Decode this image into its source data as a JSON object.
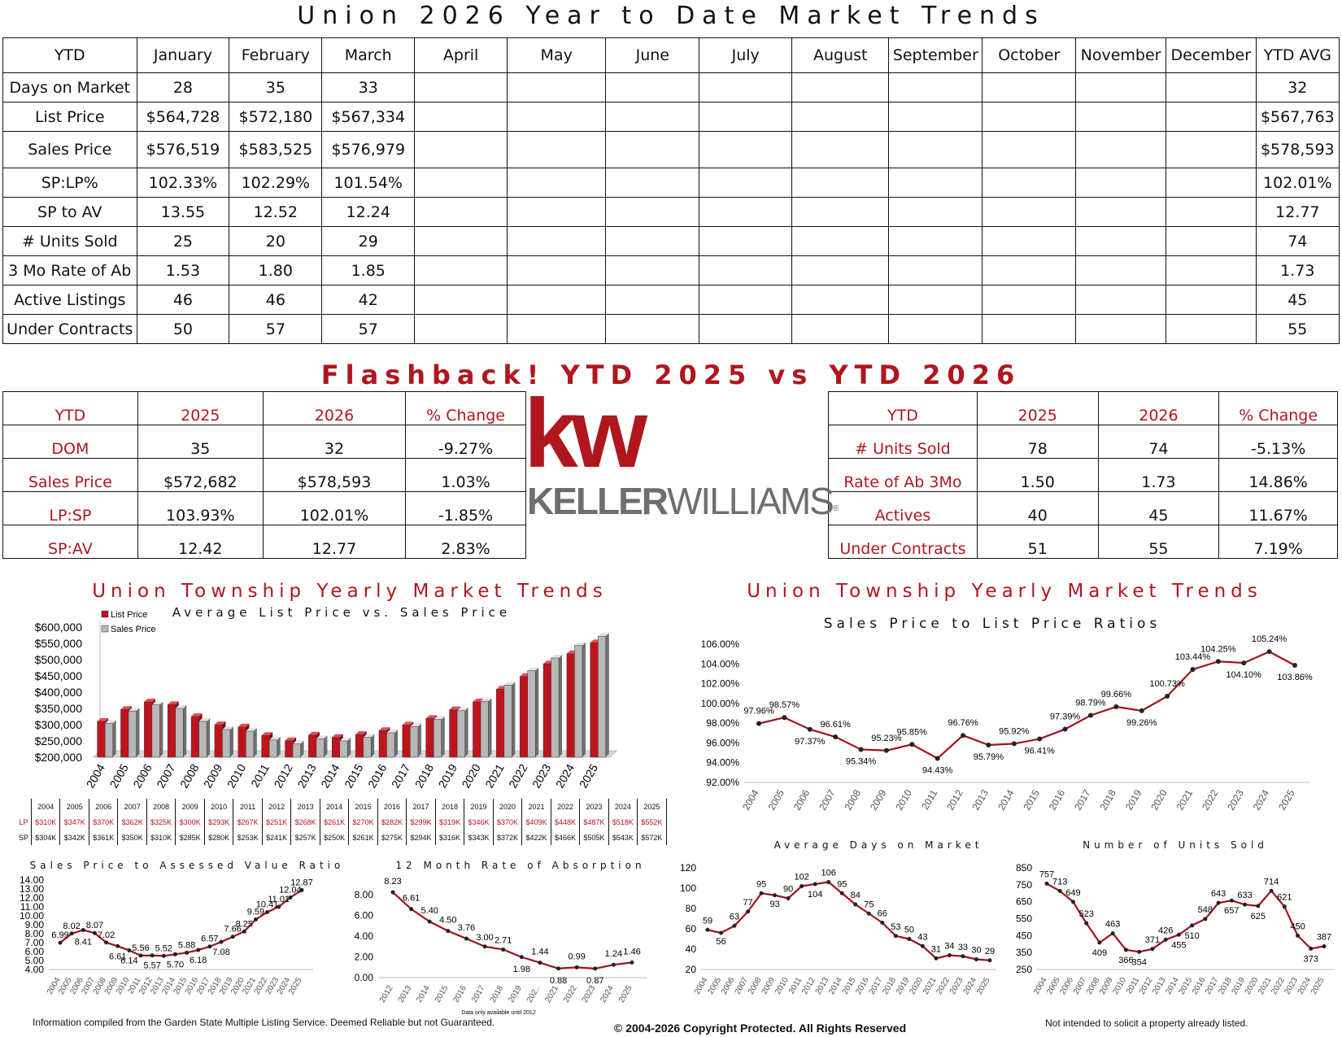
{
  "title": "Union 2026 Year to Date Market Trends",
  "ytd_table": {
    "headers": [
      "YTD",
      "January",
      "February",
      "March",
      "April",
      "May",
      "June",
      "July",
      "August",
      "September",
      "October",
      "November",
      "December",
      "YTD AVG"
    ],
    "rows": [
      {
        "label": "Days on Market",
        "jan": "28",
        "feb": "35",
        "mar": "33",
        "avg": "32"
      },
      {
        "label": "List Price",
        "jan": "$564,728",
        "feb": "$572,180",
        "mar": "$567,334",
        "avg": "$567,763"
      },
      {
        "label": "Sales Price",
        "jan": "$576,519",
        "feb": "$583,525",
        "mar": "$576,979",
        "avg": "$578,593"
      },
      {
        "label": "SP:LP%",
        "jan": "102.33%",
        "feb": "102.29%",
        "mar": "101.54%",
        "avg": "102.01%"
      },
      {
        "label": "SP to AV",
        "jan": "13.55",
        "feb": "12.52",
        "mar": "12.24",
        "avg": "12.77"
      },
      {
        "label": "# Units Sold",
        "jan": "25",
        "feb": "20",
        "mar": "29",
        "avg": "74"
      },
      {
        "label": "3 Mo Rate of Ab",
        "jan": "1.53",
        "feb": "1.80",
        "mar": "1.85",
        "avg": "1.73"
      },
      {
        "label": "Active Listings",
        "jan": "46",
        "feb": "46",
        "mar": "42",
        "avg": "45"
      },
      {
        "label": "Under Contracts",
        "jan": "50",
        "feb": "57",
        "mar": "57",
        "avg": "55"
      }
    ]
  },
  "flashback": {
    "title": "Flashback!  YTD 2025 vs YTD 2026",
    "headers": [
      "YTD",
      "2025",
      "2026",
      "% Change"
    ],
    "left_rows": [
      [
        "DOM",
        "35",
        "32",
        "-9.27%"
      ],
      [
        "Sales Price",
        "$572,682",
        "$578,593",
        "1.03%"
      ],
      [
        "LP:SP",
        "103.93%",
        "102.01%",
        "-1.85%"
      ],
      [
        "SP:AV",
        "12.42",
        "12.77",
        "2.83%"
      ]
    ],
    "right_rows": [
      [
        "# Units Sold",
        "78",
        "74",
        "-5.13%"
      ],
      [
        "Rate of Ab 3Mo",
        "1.50",
        "1.73",
        "14.86%"
      ],
      [
        "Actives",
        "40",
        "45",
        "11.67%"
      ],
      [
        "Under Contracts",
        "51",
        "55",
        "7.19%"
      ]
    ]
  },
  "logo": {
    "kw": "kw",
    "name_bold": "KELLER",
    "name_light": "WILLIAMS",
    "mark": "®",
    "color": "#b0161e",
    "gray": "#6d6e70"
  },
  "section_title": "Union Township Yearly Market Trends",
  "chart_data": [
    {
      "type": "bar",
      "title": "Average List Price vs. Sales Price",
      "categories": [
        "2004",
        "2005",
        "2006",
        "2007",
        "2008",
        "2009",
        "2010",
        "2011",
        "2012",
        "2013",
        "2014",
        "2015",
        "2016",
        "2017",
        "2018",
        "2019",
        "2020",
        "2021",
        "2022",
        "2023",
        "2024",
        "2025"
      ],
      "series": [
        {
          "name": "List Price",
          "color": "#c0141c",
          "values": [
            310000,
            347000,
            370000,
            362000,
            325000,
            300000,
            293000,
            267000,
            251000,
            268000,
            261000,
            270000,
            282000,
            299000,
            319000,
            346000,
            370000,
            409000,
            448000,
            487000,
            518000,
            552000
          ]
        },
        {
          "name": "Sales Price",
          "color": "#b8b8b8",
          "values": [
            304000,
            342000,
            361000,
            350000,
            310000,
            285000,
            280000,
            253000,
            241000,
            257000,
            250000,
            261000,
            275000,
            294000,
            316000,
            343000,
            372000,
            422000,
            466000,
            505000,
            543000,
            572000
          ]
        }
      ],
      "ylim": [
        200000,
        600000
      ],
      "yticks": [
        "$200,000",
        "$250,000",
        "$300,000",
        "$350,000",
        "$400,000",
        "$450,000",
        "$500,000",
        "$550,000",
        "$600,000"
      ],
      "legend": "top-left",
      "table": {
        "LP": [
          "$310K",
          "$347K",
          "$370K",
          "$362K",
          "$325K",
          "$300K",
          "$293K",
          "$267K",
          "$251K",
          "$268K",
          "$261K",
          "$270K",
          "$282K",
          "$299K",
          "$319K",
          "$346K",
          "$370K",
          "$409K",
          "$448K",
          "$487K",
          "$518K",
          "$552K"
        ],
        "SP": [
          "$304K",
          "$342K",
          "$361K",
          "$350K",
          "$310K",
          "$285K",
          "$280K",
          "$253K",
          "$241K",
          "$257K",
          "$250K",
          "$261K",
          "$275K",
          "$294K",
          "$316K",
          "$343K",
          "$372K",
          "$422K",
          "$466K",
          "$505K",
          "$543K",
          "$572K"
        ]
      }
    },
    {
      "type": "line",
      "title": "Sales Price to List Price Ratios",
      "x": [
        "2004",
        "2005",
        "2006",
        "2007",
        "2008",
        "2009",
        "2010",
        "2011",
        "2012",
        "2013",
        "2014",
        "2015",
        "2016",
        "2017",
        "2018",
        "2019",
        "2020",
        "2021",
        "2022",
        "2023",
        "2024",
        "2025"
      ],
      "values": [
        97.96,
        98.57,
        97.37,
        96.61,
        95.34,
        95.23,
        95.85,
        94.43,
        96.76,
        95.79,
        95.92,
        96.41,
        97.39,
        98.79,
        99.66,
        99.26,
        100.73,
        103.44,
        104.25,
        104.1,
        105.24,
        103.86
      ],
      "labels": [
        "97.96%",
        "98.57%",
        "97.37%",
        "96.61%",
        "95.34%",
        "95.23%",
        "95.85%",
        "94.43%",
        "96.76%",
        "95.79%",
        "95.92%",
        "96.41%",
        "97.39%",
        "98.79%",
        "99.66%",
        "99.26%",
        "100.73%",
        "103.44%",
        "104.25%",
        "104.10%",
        "105.24%",
        "103.86%"
      ],
      "ylim": [
        92,
        106
      ],
      "yticks": [
        "92.00%",
        "94.00%",
        "96.00%",
        "98.00%",
        "100.00%",
        "102.00%",
        "104.00%",
        "106.00%"
      ]
    },
    {
      "type": "line",
      "title": "Sales Price to Assessed Value Ratio",
      "x": [
        "2004",
        "2005",
        "2006",
        "2007",
        "2008",
        "2009",
        "2010",
        "2011",
        "2012",
        "2013",
        "2014",
        "2015",
        "2016",
        "2017",
        "2018",
        "2019",
        "2020",
        "2021",
        "2022",
        "2023",
        "2024",
        "2025"
      ],
      "values": [
        6.99,
        8.02,
        8.41,
        8.07,
        7.02,
        6.61,
        6.14,
        5.56,
        5.57,
        5.52,
        5.7,
        5.88,
        6.18,
        6.57,
        7.08,
        7.66,
        8.25,
        9.59,
        10.41,
        11.01,
        12.04,
        12.87
      ],
      "labels": [
        "6.99",
        "8.02",
        "8.41",
        "8.07",
        "7.02",
        "6.61",
        "6.14",
        "5.56",
        "5.57",
        "5.52",
        "5.70",
        "5.88",
        "6.18",
        "6.57",
        "7.08",
        "7.66",
        "8.25",
        "9.59",
        "10.41",
        "11.01",
        "12.04",
        "12.87"
      ],
      "ylim": [
        4,
        14
      ],
      "yticks": [
        "4.00",
        "5.00",
        "6.00",
        "7.00",
        "8.00",
        "9.00",
        "10.00",
        "11.00",
        "12.00",
        "13.00",
        "14.00"
      ]
    },
    {
      "type": "line",
      "title": "12 Month Rate of Absorption",
      "x": [
        "2012",
        "2013",
        "2014",
        "2015",
        "2016",
        "2017",
        "2018",
        "2019",
        "202..",
        "2021",
        "2022",
        "2023",
        "2024",
        "2025"
      ],
      "values": [
        8.23,
        6.61,
        5.4,
        4.5,
        3.76,
        3.0,
        2.71,
        1.98,
        1.44,
        0.88,
        0.99,
        0.87,
        1.24,
        1.46
      ],
      "labels": [
        "8.23",
        "6.61",
        "5.40",
        "4.50",
        "3.76",
        "3.00",
        "2.71",
        "1.98",
        "1.44",
        "0.88",
        "0.99",
        "0.87",
        "1.24",
        "1.46"
      ],
      "ylim": [
        0,
        8
      ],
      "yticks": [
        "0.00",
        "2.00",
        "4.00",
        "6.00",
        "8.00"
      ],
      "note": "Data only available until 2012"
    },
    {
      "type": "line",
      "title": "Average Days on Market",
      "x": [
        "2004",
        "2005",
        "2006",
        "2007",
        "2008",
        "2009",
        "2010",
        "2011",
        "2012",
        "2013",
        "2014",
        "2015",
        "2016",
        "2017",
        "2018",
        "2019",
        "2020",
        "2021",
        "2022",
        "2023",
        "2024",
        "2025"
      ],
      "values": [
        59,
        56,
        63,
        77,
        95,
        93,
        90,
        102,
        104,
        106,
        95,
        84,
        75,
        66,
        53,
        50,
        43,
        31,
        34,
        33,
        30,
        29
      ],
      "labels": [
        "59",
        "56",
        "63",
        "77",
        "95",
        "93",
        "90",
        "102",
        "104",
        "106",
        "95",
        "84",
        "75",
        "66",
        "53",
        "50",
        "43",
        "31",
        "34",
        "33",
        "30",
        "29"
      ],
      "ylim": [
        20,
        120
      ],
      "yticks": [
        "20",
        "40",
        "60",
        "80",
        "100",
        "120"
      ]
    },
    {
      "type": "line",
      "title": "Number of Units Sold",
      "x": [
        "2004",
        "2005",
        "2006",
        "2007",
        "2008",
        "2009",
        "2010",
        "2011",
        "2012",
        "2013",
        "2014",
        "2015",
        "2016",
        "2017",
        "2018",
        "2019",
        "2020",
        "2021",
        "2022",
        "2023",
        "2024",
        "2025"
      ],
      "values": [
        757,
        713,
        649,
        523,
        409,
        463,
        366,
        354,
        371,
        426,
        455,
        510,
        548,
        643,
        657,
        633,
        625,
        714,
        621,
        450,
        373,
        387
      ],
      "labels": [
        "757",
        "713",
        "649",
        "523",
        "409",
        "463",
        "366",
        "354",
        "371",
        "426",
        "455",
        "510",
        "548",
        "643",
        "657",
        "633",
        "625",
        "714",
        "621",
        "450",
        "373",
        "387"
      ],
      "ylim": [
        250,
        850
      ],
      "yticks": [
        "250",
        "350",
        "450",
        "550",
        "650",
        "750",
        "850"
      ]
    }
  ],
  "footer": {
    "left": "Information compiled from the Garden State Multiple Listing Service.  Deemed Reliable but not Guaranteed.",
    "center": "© 2004-2026 Copyright Protected.  All Rights Reserved",
    "right": "Not intended to solicit a property already listed."
  }
}
